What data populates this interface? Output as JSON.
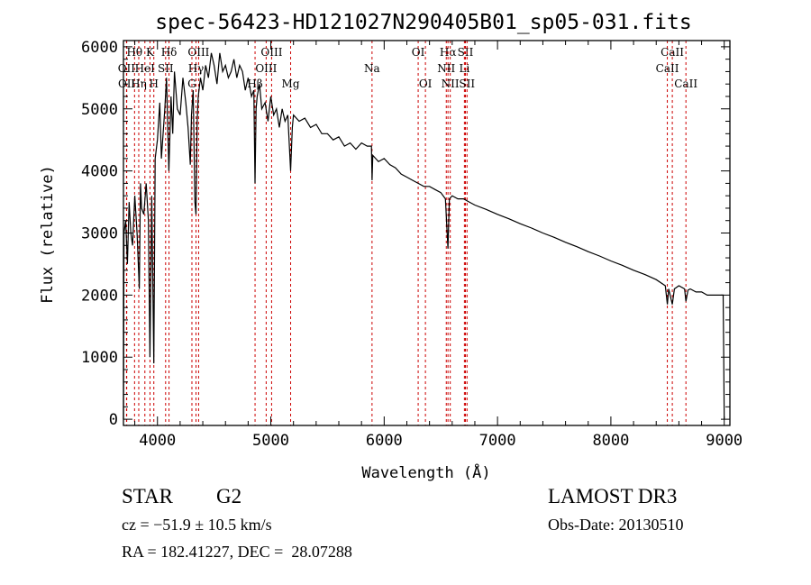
{
  "chart_data": {
    "type": "line",
    "title": "spec-56423-HD121027N290405B01_sp05-031.fits",
    "xlabel": "Wavelength (Å)",
    "ylabel": "Flux (relative)",
    "xlim": [
      3700,
      9050
    ],
    "ylim": [
      -100,
      6100
    ],
    "xticks": [
      4000,
      5000,
      6000,
      7000,
      8000,
      9000
    ],
    "yticks": [
      0,
      1000,
      2000,
      3000,
      4000,
      5000,
      6000
    ],
    "grid": false,
    "series": [
      {
        "name": "spectrum",
        "x": [
          3700,
          3702,
          3705,
          3720,
          3735,
          3750,
          3765,
          3780,
          3800,
          3820,
          3840,
          3850,
          3860,
          3880,
          3900,
          3920,
          3934,
          3950,
          3968,
          3980,
          4000,
          4020,
          4035,
          4050,
          4065,
          4080,
          4101,
          4120,
          4135,
          4150,
          4175,
          4200,
          4225,
          4250,
          4270,
          4290,
          4300,
          4315,
          4330,
          4340,
          4350,
          4360,
          4380,
          4400,
          4425,
          4450,
          4475,
          4500,
          4525,
          4550,
          4575,
          4600,
          4625,
          4650,
          4675,
          4700,
          4725,
          4750,
          4775,
          4800,
          4830,
          4850,
          4861,
          4870,
          4880,
          4900,
          4920,
          4950,
          4975,
          5000,
          5025,
          5050,
          5075,
          5100,
          5125,
          5150,
          5175,
          5190,
          5200,
          5250,
          5300,
          5350,
          5400,
          5450,
          5500,
          5550,
          5600,
          5650,
          5700,
          5750,
          5800,
          5850,
          5888,
          5893,
          5900,
          5950,
          6000,
          6050,
          6100,
          6150,
          6200,
          6250,
          6300,
          6350,
          6400,
          6450,
          6500,
          6540,
          6563,
          6575,
          6600,
          6650,
          6700,
          6750,
          6800,
          6900,
          7000,
          7100,
          7200,
          7300,
          7400,
          7500,
          7600,
          7700,
          7800,
          7900,
          8000,
          8100,
          8200,
          8300,
          8400,
          8480,
          8498,
          8510,
          8542,
          8560,
          8600,
          8650,
          8662,
          8680,
          8700,
          8750,
          8800,
          8850,
          8900,
          8950,
          8990,
          8995,
          9000
        ],
        "y": [
          0,
          1400,
          3000,
          3200,
          2500,
          3500,
          3000,
          2800,
          3600,
          3000,
          2100,
          3800,
          3400,
          3300,
          3800,
          3200,
          1000,
          3600,
          900,
          4200,
          4500,
          5100,
          4200,
          4600,
          5000,
          5500,
          4000,
          5200,
          4600,
          5600,
          5000,
          4900,
          5500,
          5100,
          4700,
          4100,
          4900,
          5300,
          3500,
          3300,
          4800,
          5200,
          5500,
          5300,
          5700,
          5500,
          5900,
          5700,
          5400,
          5900,
          5600,
          5700,
          5500,
          5600,
          5800,
          5500,
          5700,
          5600,
          5300,
          5500,
          5200,
          5300,
          3800,
          5000,
          5200,
          5400,
          5000,
          5100,
          4800,
          5200,
          4900,
          5000,
          4700,
          5000,
          4800,
          4900,
          4000,
          4700,
          4900,
          4800,
          4850,
          4700,
          4750,
          4600,
          4600,
          4500,
          4550,
          4400,
          4450,
          4350,
          4450,
          4400,
          4400,
          3850,
          4250,
          4150,
          4200,
          4100,
          4050,
          3950,
          3900,
          3850,
          3800,
          3750,
          3750,
          3700,
          3650,
          3550,
          2750,
          3550,
          3600,
          3550,
          3550,
          3500,
          3450,
          3380,
          3300,
          3230,
          3150,
          3080,
          3000,
          2930,
          2850,
          2780,
          2700,
          2630,
          2550,
          2480,
          2400,
          2330,
          2250,
          2150,
          1850,
          2100,
          1850,
          2100,
          2150,
          2100,
          1900,
          2080,
          2100,
          2050,
          2050,
          2000,
          2000,
          2000,
          2000,
          1100,
          0
        ]
      }
    ],
    "line_markers": [
      {
        "label": "Hθ",
        "wavelength": 3798,
        "row": 0
      },
      {
        "label": "K",
        "wavelength": 3934,
        "row": 0
      },
      {
        "label": "Hδ",
        "wavelength": 4102,
        "row": 0
      },
      {
        "label": "OIII",
        "wavelength": 4363,
        "row": 0
      },
      {
        "label": "OIII",
        "wavelength": 5007,
        "row": 0
      },
      {
        "label": "OI",
        "wavelength": 6300,
        "row": 0
      },
      {
        "label": "Hα",
        "wavelength": 6563,
        "row": 0
      },
      {
        "label": "SII",
        "wavelength": 6717,
        "row": 0
      },
      {
        "label": "CaII",
        "wavelength": 8542,
        "row": 0
      },
      {
        "label": "OII",
        "wavelength": 3727,
        "row": 1
      },
      {
        "label": "HeI",
        "wavelength": 3889,
        "row": 1
      },
      {
        "label": "SII",
        "wavelength": 4072,
        "row": 1
      },
      {
        "label": "Hγ",
        "wavelength": 4340,
        "row": 1
      },
      {
        "label": "OIII",
        "wavelength": 4959,
        "row": 1
      },
      {
        "label": "Na",
        "wavelength": 5893,
        "row": 1
      },
      {
        "label": "NII",
        "wavelength": 6548,
        "row": 1
      },
      {
        "label": "Li",
        "wavelength": 6708,
        "row": 1
      },
      {
        "label": "CaII",
        "wavelength": 8498,
        "row": 1
      },
      {
        "label": "OII",
        "wavelength": 3729,
        "row": 2
      },
      {
        "label": "Hη",
        "wavelength": 3835,
        "row": 2
      },
      {
        "label": "H",
        "wavelength": 3968,
        "row": 2
      },
      {
        "label": "G",
        "wavelength": 4304,
        "row": 2
      },
      {
        "label": "Hβ",
        "wavelength": 4861,
        "row": 2
      },
      {
        "label": "Mg",
        "wavelength": 5175,
        "row": 2
      },
      {
        "label": "OI",
        "wavelength": 6364,
        "row": 2
      },
      {
        "label": "NII",
        "wavelength": 6583,
        "row": 2
      },
      {
        "label": "SII",
        "wavelength": 6731,
        "row": 2
      },
      {
        "label": "CaII",
        "wavelength": 8662,
        "row": 2
      }
    ],
    "marker_color": "#cc0000"
  },
  "info": {
    "object_class": "STAR",
    "subclass": "G2",
    "survey": "LAMOST DR3",
    "cz": "cz = −51.9 ± 10.5 km/s",
    "obs_date": "Obs-Date: 20130510",
    "coords": "RA = 182.41227, DEC =  28.07288"
  }
}
